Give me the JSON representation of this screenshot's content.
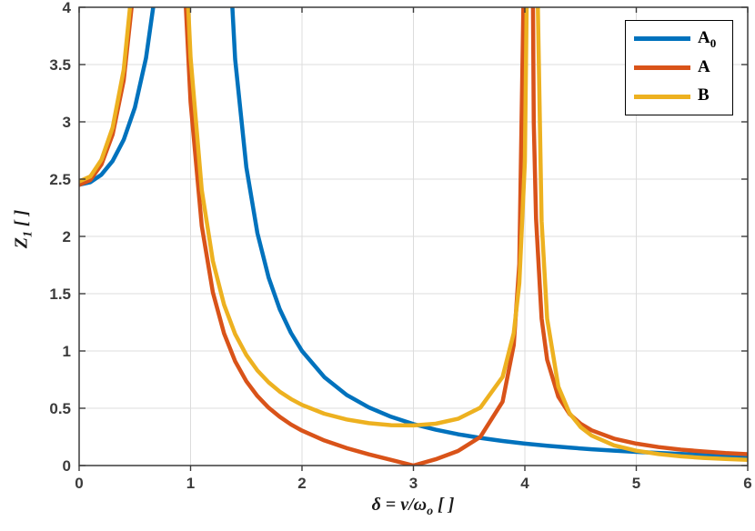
{
  "chart_data": {
    "type": "line",
    "title": "",
    "xlabel": "δ = ν/ω_o [ ]",
    "ylabel": "Z_1 [ ]",
    "xlabel_runs": [
      {
        "t": "δ = ν/ω"
      },
      {
        "t": "o",
        "sub": true
      },
      {
        "t": " [ ]"
      }
    ],
    "ylabel_runs": [
      {
        "t": "Z"
      },
      {
        "t": "1",
        "sub": true
      },
      {
        "t": " [ ]"
      }
    ],
    "xlim": [
      0,
      6
    ],
    "ylim": [
      0,
      4
    ],
    "grid": true,
    "legend_position": "top-right",
    "xticks": {
      "values": [
        0,
        1,
        2,
        3,
        4,
        5,
        6
      ],
      "labels": [
        "0",
        "1",
        "2",
        "3",
        "4",
        "5",
        "6"
      ]
    },
    "yticks": {
      "values": [
        0,
        0.5,
        1,
        1.5,
        2,
        2.5,
        3,
        3.5,
        4
      ],
      "labels": [
        "0",
        "0.5",
        "1",
        "1.5",
        "2",
        "2.5",
        "3",
        "3.5",
        "4"
      ]
    },
    "style": {
      "background": "#ffffff",
      "axis_color": "#3b3b3b",
      "grid_color": "#dcdcdc",
      "tick_label_color": "#3b3b3b",
      "legend_border_color": "#000000",
      "line_width": 4.5
    },
    "series": [
      {
        "name": "A_0",
        "label": "A",
        "label_sub": "0",
        "color": "#0072BD",
        "description": "single spike near delta=1.08, monotone decay after",
        "x": [
          0,
          0.1,
          0.2,
          0.3,
          0.4,
          0.5,
          0.6,
          0.7,
          0.8,
          0.9,
          1.0,
          1.05,
          1.1,
          1.15,
          1.2,
          1.3,
          1.4,
          1.5,
          1.6,
          1.7,
          1.8,
          1.9,
          2.0,
          2.2,
          2.4,
          2.6,
          2.8,
          3.0,
          3.2,
          3.4,
          3.6,
          3.8,
          4.0,
          4.2,
          4.4,
          4.6,
          4.8,
          5.0,
          5.2,
          5.4,
          5.6,
          5.8,
          6.0
        ],
        "y": [
          2.451,
          2.473,
          2.539,
          2.658,
          2.844,
          3.125,
          3.556,
          4.247,
          5.474,
          8.141,
          17.87,
          50.3,
          55.7,
          17.38,
          10.11,
          5.35,
          3.547,
          2.604,
          2.028,
          1.641,
          1.365,
          1.159,
          1.0,
          0.772,
          0.617,
          0.507,
          0.425,
          0.362,
          0.313,
          0.273,
          0.241,
          0.214,
          0.191,
          0.172,
          0.156,
          0.142,
          0.13,
          0.119,
          0.11,
          0.101,
          0.094,
          0.087,
          0.082
        ]
      },
      {
        "name": "A",
        "label": "A",
        "label_sub": "",
        "color": "#D95319",
        "description": "poles near delta=0.76 and 4.03, zero (touches 0) at delta=3",
        "x": [
          0,
          0.1,
          0.2,
          0.3,
          0.4,
          0.5,
          0.55,
          0.6,
          0.65,
          0.7,
          0.73,
          0.79,
          0.82,
          0.85,
          0.9,
          0.95,
          1.0,
          1.1,
          1.2,
          1.3,
          1.4,
          1.5,
          1.6,
          1.7,
          1.8,
          1.9,
          2.0,
          2.2,
          2.4,
          2.6,
          2.8,
          3.0,
          3.2,
          3.4,
          3.6,
          3.8,
          3.9,
          3.95,
          4.0,
          4.02,
          4.05,
          4.08,
          4.1,
          4.15,
          4.2,
          4.3,
          4.4,
          4.5,
          4.6,
          4.8,
          5.0,
          5.2,
          5.4,
          5.6,
          5.8,
          6.0
        ],
        "y": [
          2.45,
          2.492,
          2.627,
          2.889,
          3.362,
          4.266,
          5.065,
          6.387,
          8.932,
          15.77,
          30.86,
          29.38,
          14.38,
          9.391,
          5.829,
          4.147,
          3.172,
          2.092,
          1.512,
          1.153,
          0.91,
          0.736,
          0.606,
          0.505,
          0.425,
          0.359,
          0.305,
          0.219,
          0.152,
          0.098,
          0.049,
          0.0,
          0.055,
          0.127,
          0.249,
          0.557,
          1.052,
          1.761,
          4.828,
          14.74,
          7.349,
          2.991,
          2.155,
          1.283,
          0.924,
          0.601,
          0.451,
          0.364,
          0.307,
          0.235,
          0.191,
          0.161,
          0.139,
          0.123,
          0.109,
          0.099
        ]
      },
      {
        "name": "B",
        "label": "B",
        "label_sub": "",
        "color": "#EDB120",
        "description": "poles near delta=0.76 and 4.07, minimum ~0.35 near delta=3",
        "x": [
          0,
          0.1,
          0.2,
          0.3,
          0.4,
          0.5,
          0.55,
          0.6,
          0.65,
          0.7,
          0.73,
          0.79,
          0.82,
          0.85,
          0.9,
          0.95,
          1.0,
          1.1,
          1.2,
          1.3,
          1.4,
          1.5,
          1.6,
          1.7,
          1.8,
          1.9,
          2.0,
          2.2,
          2.4,
          2.6,
          2.8,
          3.0,
          3.2,
          3.4,
          3.6,
          3.8,
          3.9,
          3.95,
          4.0,
          4.04,
          4.06,
          4.09,
          4.11,
          4.15,
          4.2,
          4.3,
          4.4,
          4.5,
          4.6,
          4.8,
          5.0,
          5.2,
          5.4,
          5.6,
          5.8,
          6.0
        ],
        "y": [
          2.479,
          2.523,
          2.668,
          2.949,
          3.455,
          4.423,
          5.281,
          6.695,
          9.426,
          16.75,
          32.94,
          31.66,
          15.57,
          10.23,
          6.408,
          4.607,
          3.562,
          2.405,
          1.786,
          1.404,
          1.148,
          0.965,
          0.829,
          0.726,
          0.645,
          0.581,
          0.529,
          0.452,
          0.402,
          0.37,
          0.352,
          0.35,
          0.365,
          0.408,
          0.505,
          0.773,
          1.156,
          1.591,
          2.65,
          6.046,
          17.94,
          8.824,
          4.363,
          2.133,
          1.282,
          0.689,
          0.458,
          0.336,
          0.261,
          0.176,
          0.129,
          0.1,
          0.08,
          0.067,
          0.057,
          0.05
        ]
      }
    ]
  }
}
